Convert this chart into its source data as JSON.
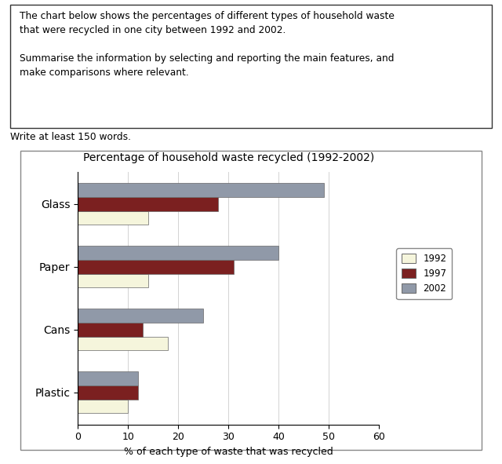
{
  "title": "Percentage of household waste recycled (1992-2002)",
  "xlabel": "% of each type of waste that was recycled",
  "categories": [
    "Glass",
    "Paper",
    "Cans",
    "Plastic"
  ],
  "years": [
    "1992",
    "1997",
    "2002"
  ],
  "values": {
    "Plastic": {
      "1992": 10,
      "1997": 12,
      "2002": 12
    },
    "Cans": {
      "1992": 18,
      "1997": 13,
      "2002": 25
    },
    "Paper": {
      "1992": 14,
      "1997": 31,
      "2002": 40
    },
    "Glass": {
      "1992": 14,
      "1997": 28,
      "2002": 49
    }
  },
  "colors": {
    "1992": "#F5F5DC",
    "1997": "#7B2020",
    "2002": "#9099A8"
  },
  "bar_edge_color": "#666666",
  "xlim": [
    0,
    60
  ],
  "xticks": [
    0,
    10,
    20,
    30,
    40,
    50,
    60
  ],
  "background_color": "#ffffff",
  "title_fontsize": 10,
  "axis_label_fontsize": 9,
  "tick_fontsize": 9,
  "ytick_fontsize": 10,
  "bar_height": 0.22,
  "text_line1": "The chart below shows the percentages of different types of household waste",
  "text_line2": "that were recycled in one city between 1992 and 2002.",
  "text_line3": "",
  "text_line4": "Summarise the information by selecting and reporting the main features, and",
  "text_line5": "make comparisons where relevant.",
  "write_text": "Write at least 150 words."
}
